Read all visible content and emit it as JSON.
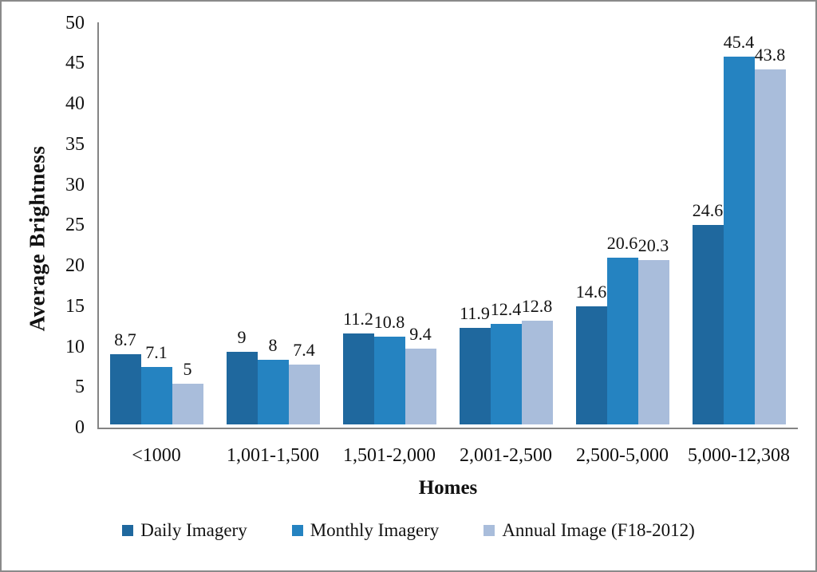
{
  "chart_data": {
    "type": "bar",
    "title": "",
    "xlabel": "Homes",
    "ylabel": "Average Brightness",
    "ylim": [
      0,
      50
    ],
    "ytick_step": 5,
    "yticks": [
      "0",
      "5",
      "10",
      "15",
      "20",
      "25",
      "30",
      "35",
      "40",
      "45",
      "50"
    ],
    "grid": false,
    "legend_position": "bottom",
    "categories": [
      "<1000",
      "1,001-1,500",
      "1,501-2,000",
      "2,001-2,500",
      "2,500-5,000",
      "5,000-12,308"
    ],
    "series": [
      {
        "name": "Daily Imagery",
        "color": "#1F689E",
        "values": [
          8.7,
          9,
          11.2,
          11.9,
          14.6,
          24.6
        ],
        "labels": [
          "8.7",
          "9",
          "11.2",
          "11.9",
          "14.6",
          "24.6"
        ]
      },
      {
        "name": "Monthly Imagery",
        "color": "#2583C1",
        "values": [
          7.1,
          8,
          10.8,
          12.4,
          20.6,
          45.4
        ],
        "labels": [
          "7.1",
          "8",
          "10.8",
          "12.4",
          "20.6",
          "45.4"
        ]
      },
      {
        "name": "Annual Image (F18-2012)",
        "color": "#A9BDDB",
        "values": [
          5,
          7.4,
          9.4,
          12.8,
          20.3,
          43.8
        ],
        "labels": [
          "5",
          "7.4",
          "9.4",
          "12.8",
          "20.3",
          "43.8"
        ]
      }
    ]
  }
}
